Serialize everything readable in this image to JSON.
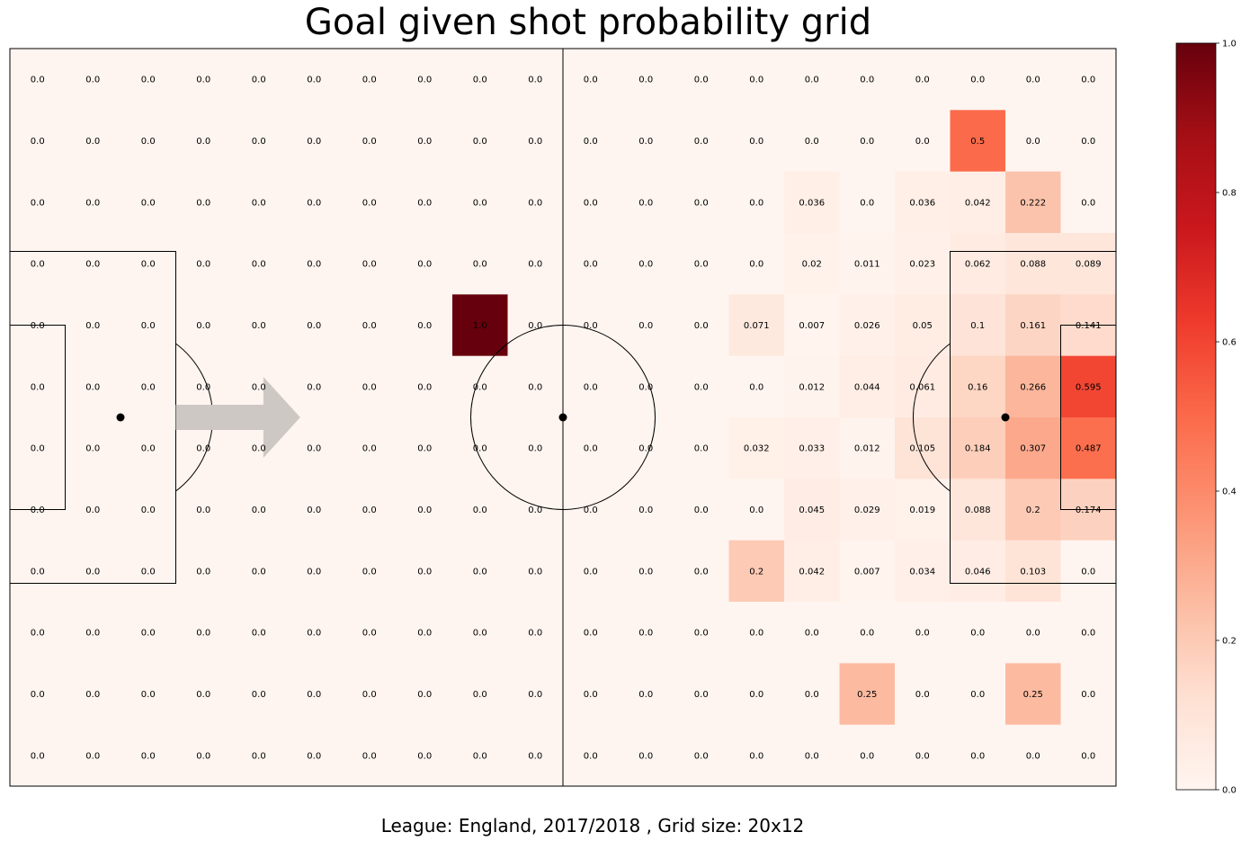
{
  "chart_data": {
    "type": "heatmap",
    "title": "Goal given shot probability grid",
    "caption": "League: England, 2017/2018 , Grid size: 20x12",
    "grid": {
      "cols": 20,
      "rows": 12
    },
    "vlim": [
      0,
      1
    ],
    "colormap": "Reds",
    "colorbar_ticks": [
      "0.0",
      "0.2",
      "0.4",
      "0.6",
      "0.8",
      "1.0"
    ],
    "labels": [
      [
        "0.0",
        "0.0",
        "0.0",
        "0.0",
        "0.0",
        "0.0",
        "0.0",
        "0.0",
        "0.0",
        "0.0",
        "0.0",
        "0.0",
        "0.0",
        "0.0",
        "0.0",
        "0.0",
        "0.0",
        "0.0",
        "0.0",
        "0.0"
      ],
      [
        "0.0",
        "0.0",
        "0.0",
        "0.0",
        "0.0",
        "0.0",
        "0.0",
        "0.0",
        "0.0",
        "0.0",
        "0.0",
        "0.0",
        "0.0",
        "0.0",
        "0.0",
        "0.0",
        "0.0",
        "0.5",
        "0.0",
        "0.0"
      ],
      [
        "0.0",
        "0.0",
        "0.0",
        "0.0",
        "0.0",
        "0.0",
        "0.0",
        "0.0",
        "0.0",
        "0.0",
        "0.0",
        "0.0",
        "0.0",
        "0.0",
        "0.036",
        "0.0",
        "0.036",
        "0.042",
        "0.222",
        "0.0"
      ],
      [
        "0.0",
        "0.0",
        "0.0",
        "0.0",
        "0.0",
        "0.0",
        "0.0",
        "0.0",
        "0.0",
        "0.0",
        "0.0",
        "0.0",
        "0.0",
        "0.0",
        "0.02",
        "0.011",
        "0.023",
        "0.062",
        "0.088",
        "0.089"
      ],
      [
        "0.0",
        "0.0",
        "0.0",
        "0.0",
        "0.0",
        "0.0",
        "0.0",
        "0.0",
        "1.0",
        "0.0",
        "0.0",
        "0.0",
        "0.0",
        "0.071",
        "0.007",
        "0.026",
        "0.05",
        "0.1",
        "0.161",
        "0.141"
      ],
      [
        "0.0",
        "0.0",
        "0.0",
        "0.0",
        "0.0",
        "0.0",
        "0.0",
        "0.0",
        "0.0",
        "0.0",
        "0.0",
        "0.0",
        "0.0",
        "0.0",
        "0.012",
        "0.044",
        "0.061",
        "0.16",
        "0.266",
        "0.595"
      ],
      [
        "0.0",
        "0.0",
        "0.0",
        "0.0",
        "0.0",
        "0.0",
        "0.0",
        "0.0",
        "0.0",
        "0.0",
        "0.0",
        "0.0",
        "0.0",
        "0.032",
        "0.033",
        "0.012",
        "0.105",
        "0.184",
        "0.307",
        "0.487"
      ],
      [
        "0.0",
        "0.0",
        "0.0",
        "0.0",
        "0.0",
        "0.0",
        "0.0",
        "0.0",
        "0.0",
        "0.0",
        "0.0",
        "0.0",
        "0.0",
        "0.0",
        "0.045",
        "0.029",
        "0.019",
        "0.088",
        "0.2",
        "0.174"
      ],
      [
        "0.0",
        "0.0",
        "0.0",
        "0.0",
        "0.0",
        "0.0",
        "0.0",
        "0.0",
        "0.0",
        "0.0",
        "0.0",
        "0.0",
        "0.0",
        "0.2",
        "0.042",
        "0.007",
        "0.034",
        "0.046",
        "0.103",
        "0.0"
      ],
      [
        "0.0",
        "0.0",
        "0.0",
        "0.0",
        "0.0",
        "0.0",
        "0.0",
        "0.0",
        "0.0",
        "0.0",
        "0.0",
        "0.0",
        "0.0",
        "0.0",
        "0.0",
        "0.0",
        "0.0",
        "0.0",
        "0.0",
        "0.0"
      ],
      [
        "0.0",
        "0.0",
        "0.0",
        "0.0",
        "0.0",
        "0.0",
        "0.0",
        "0.0",
        "0.0",
        "0.0",
        "0.0",
        "0.0",
        "0.0",
        "0.0",
        "0.0",
        "0.25",
        "0.0",
        "0.0",
        "0.25",
        "0.0"
      ],
      [
        "0.0",
        "0.0",
        "0.0",
        "0.0",
        "0.0",
        "0.0",
        "0.0",
        "0.0",
        "0.0",
        "0.0",
        "0.0",
        "0.0",
        "0.0",
        "0.0",
        "0.0",
        "0.0",
        "0.0",
        "0.0",
        "0.0",
        "0.0"
      ]
    ],
    "arrow_color": "#cdc8c4",
    "pitch_line_color": "#000000"
  }
}
